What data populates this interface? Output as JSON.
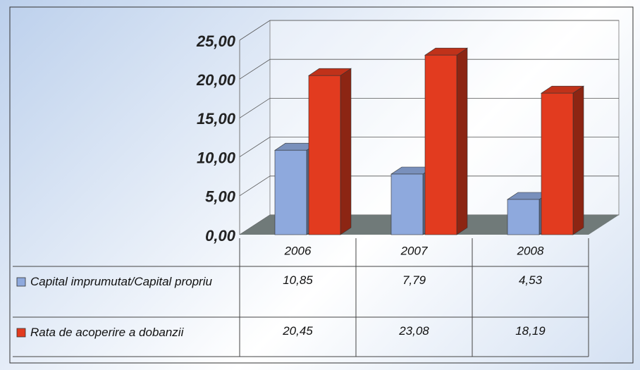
{
  "chart_data": {
    "type": "bar3d",
    "categories": [
      "2006",
      "2007",
      "2008"
    ],
    "series": [
      {
        "name": "Capital imprumutat/Capital propriu",
        "color": "#8ea9dd",
        "values": [
          10.85,
          7.79,
          4.53
        ],
        "value_labels": [
          "10,85",
          "7,79",
          "4,53"
        ]
      },
      {
        "name": "Rata de acoperire a dobanzii",
        "color": "#e23b1f",
        "values": [
          20.45,
          23.08,
          18.19
        ],
        "value_labels": [
          "20,45",
          "23,08",
          "18,19"
        ]
      }
    ],
    "ylim": [
      0,
      25
    ],
    "yticks": [
      {
        "value": 0,
        "label": "0,00"
      },
      {
        "value": 5,
        "label": "5,00"
      },
      {
        "value": 10,
        "label": "10,00"
      },
      {
        "value": 15,
        "label": "15,00"
      },
      {
        "value": 20,
        "label": "20,00"
      },
      {
        "value": 25,
        "label": "25,00"
      }
    ],
    "grid": true
  }
}
